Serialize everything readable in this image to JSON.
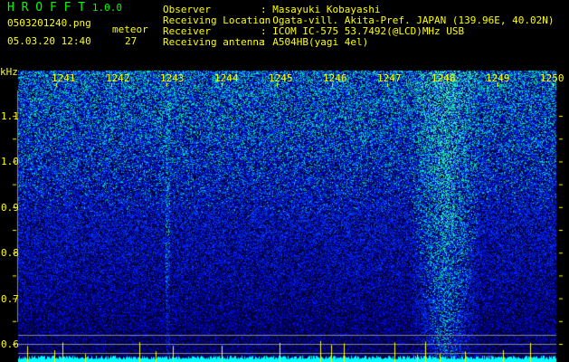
{
  "app": {
    "name": "H R O F F T",
    "version": "1.0.0"
  },
  "file": {
    "name": "0503201240.png",
    "datetime": "05.03.20 12:40"
  },
  "meteor": {
    "label": "meteor",
    "count": "27"
  },
  "info": [
    {
      "label": "Observer",
      "value": "Masayuki Kobayashi"
    },
    {
      "label": "Receiving Location",
      "value": "Ogata-vill. Akita-Pref. JAPAN (139.96E, 40.02N)"
    },
    {
      "label": "Receiver",
      "value": "ICOM IC-575 53.7492(@LCD)MHz USB"
    },
    {
      "label": "Receiving antenna",
      "value": "A504HB(yagi 4el)"
    }
  ],
  "y_axis": {
    "unit": "kHz",
    "ticks": [
      "1.1",
      "1.0",
      "0.9",
      "0.8",
      "0.7",
      "0.6"
    ]
  },
  "x_axis": {
    "ticks": [
      "1241",
      "1242",
      "1243",
      "1244",
      "1245",
      "1246",
      "1247",
      "1248",
      "1249",
      "1250"
    ]
  },
  "colors": {
    "text": "#ffff00",
    "title": "#00ff00",
    "level": "#00ffff",
    "marker": "#ffff00"
  }
}
